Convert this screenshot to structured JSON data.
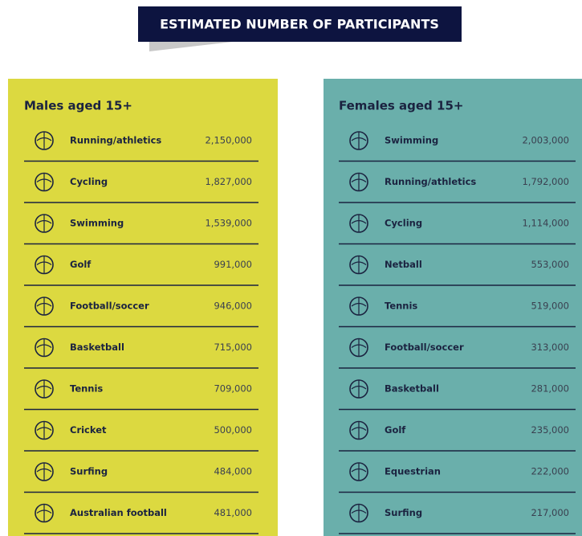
{
  "header": {
    "title": "ESTIMATED NUMBER OF PARTICIPANTS"
  },
  "panels": [
    {
      "title": "Males aged 15+",
      "rows": [
        {
          "sport": "Running/athletics",
          "value": "2,150,000"
        },
        {
          "sport": "Cycling",
          "value": "1,827,000"
        },
        {
          "sport": "Swimming",
          "value": "1,539,000"
        },
        {
          "sport": "Golf",
          "value": "991,000"
        },
        {
          "sport": "Football/soccer",
          "value": "946,000"
        },
        {
          "sport": "Basketball",
          "value": "715,000"
        },
        {
          "sport": "Tennis",
          "value": "709,000"
        },
        {
          "sport": "Cricket",
          "value": "500,000"
        },
        {
          "sport": "Surfing",
          "value": "484,000"
        },
        {
          "sport": "Australian football",
          "value": "481,000"
        }
      ]
    },
    {
      "title": "Females aged 15+",
      "rows": [
        {
          "sport": "Swimming",
          "value": "2,003,000"
        },
        {
          "sport": "Running/athletics",
          "value": "1,792,000"
        },
        {
          "sport": "Cycling",
          "value": "1,114,000"
        },
        {
          "sport": "Netball",
          "value": "553,000"
        },
        {
          "sport": "Tennis",
          "value": "519,000"
        },
        {
          "sport": "Football/soccer",
          "value": "313,000"
        },
        {
          "sport": "Basketball",
          "value": "281,000"
        },
        {
          "sport": "Golf",
          "value": "235,000"
        },
        {
          "sport": "Equestrian",
          "value": "222,000"
        },
        {
          "sport": "Surfing",
          "value": "217,000"
        }
      ]
    }
  ]
}
